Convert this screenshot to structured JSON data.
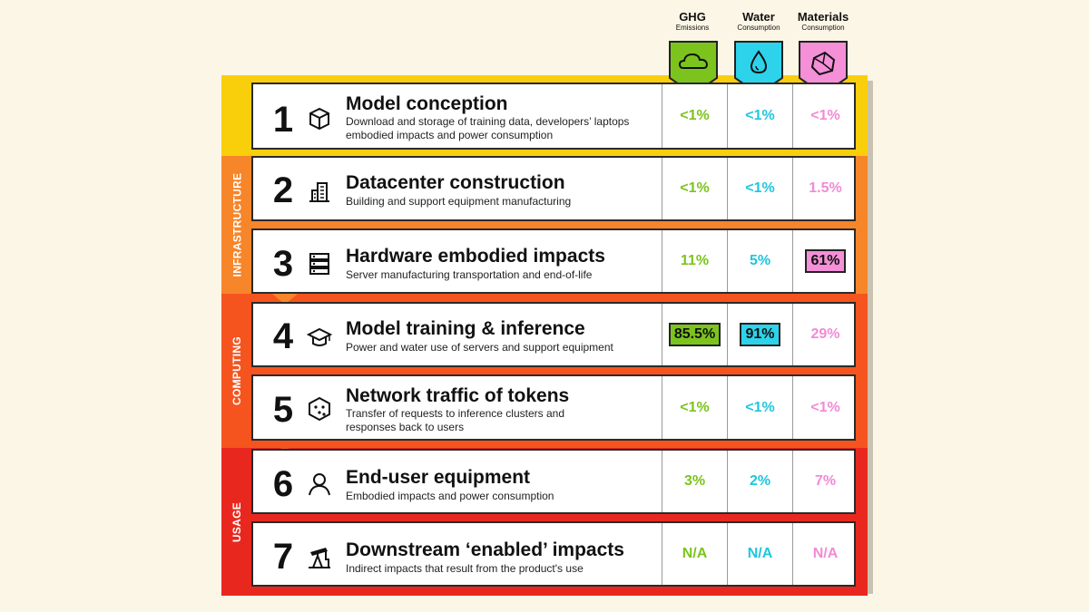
{
  "columns": [
    {
      "title": "GHG",
      "subtitle": "Emissions",
      "color": "#7cc41d",
      "icon": "cloud-icon"
    },
    {
      "title": "Water",
      "subtitle": "Consumption",
      "color": "#1fc6df",
      "icon": "water-drop-icon"
    },
    {
      "title": "Materials",
      "subtitle": "Consumption",
      "color": "#f28ad6",
      "icon": "rock-icon"
    }
  ],
  "groups": [
    {
      "label": "INFRASTRUCTURE",
      "color": "#f7852a"
    },
    {
      "label": "COMPUTING",
      "color": "#f6541f"
    },
    {
      "label": "USAGE",
      "color": "#e8281f"
    }
  ],
  "stages": [
    {
      "number": "1",
      "title": "Model conception",
      "description": "Download and storage of training data, developers’ laptops embodied impacts and power consumption",
      "icon": "cube-icon",
      "ghg": "<1%",
      "water": "<1%",
      "materials": "<1%"
    },
    {
      "number": "2",
      "title": "Datacenter construction",
      "description": "Building and support equipment manufacturing",
      "icon": "building-icon",
      "ghg": "<1%",
      "water": "<1%",
      "materials": "1.5%"
    },
    {
      "number": "3",
      "title": "Hardware embodied impacts",
      "description": "Server manufacturing transportation and end-of-life",
      "icon": "server-icon",
      "ghg": "11%",
      "water": "5%",
      "materials": "61%"
    },
    {
      "number": "4",
      "title": "Model training & inference",
      "description": "Power and water use of servers and support equipment",
      "icon": "graduation-cap-icon",
      "ghg": "85.5%",
      "water": "91%",
      "materials": "29%"
    },
    {
      "number": "5",
      "title": "Network traffic of tokens",
      "description": "Transfer of requests to inference clusters and responses back to users",
      "icon": "dice-icon",
      "ghg": "<1%",
      "water": "<1%",
      "materials": "<1%"
    },
    {
      "number": "6",
      "title": "End-user equipment",
      "description": "Embodied impacts and power consumption",
      "icon": "user-icon",
      "ghg": "3%",
      "water": "2%",
      "materials": "7%"
    },
    {
      "number": "7",
      "title": "Downstream ‘enabled’ impacts",
      "description": "Indirect impacts that result from the product's use",
      "icon": "oil-pump-icon",
      "ghg": "N/A",
      "water": "N/A",
      "materials": "N/A"
    }
  ],
  "colors": {
    "stage1": "#f9cf0c",
    "infrastructure": "#f7852a",
    "computing": "#f6541f",
    "usage": "#e8281f"
  }
}
